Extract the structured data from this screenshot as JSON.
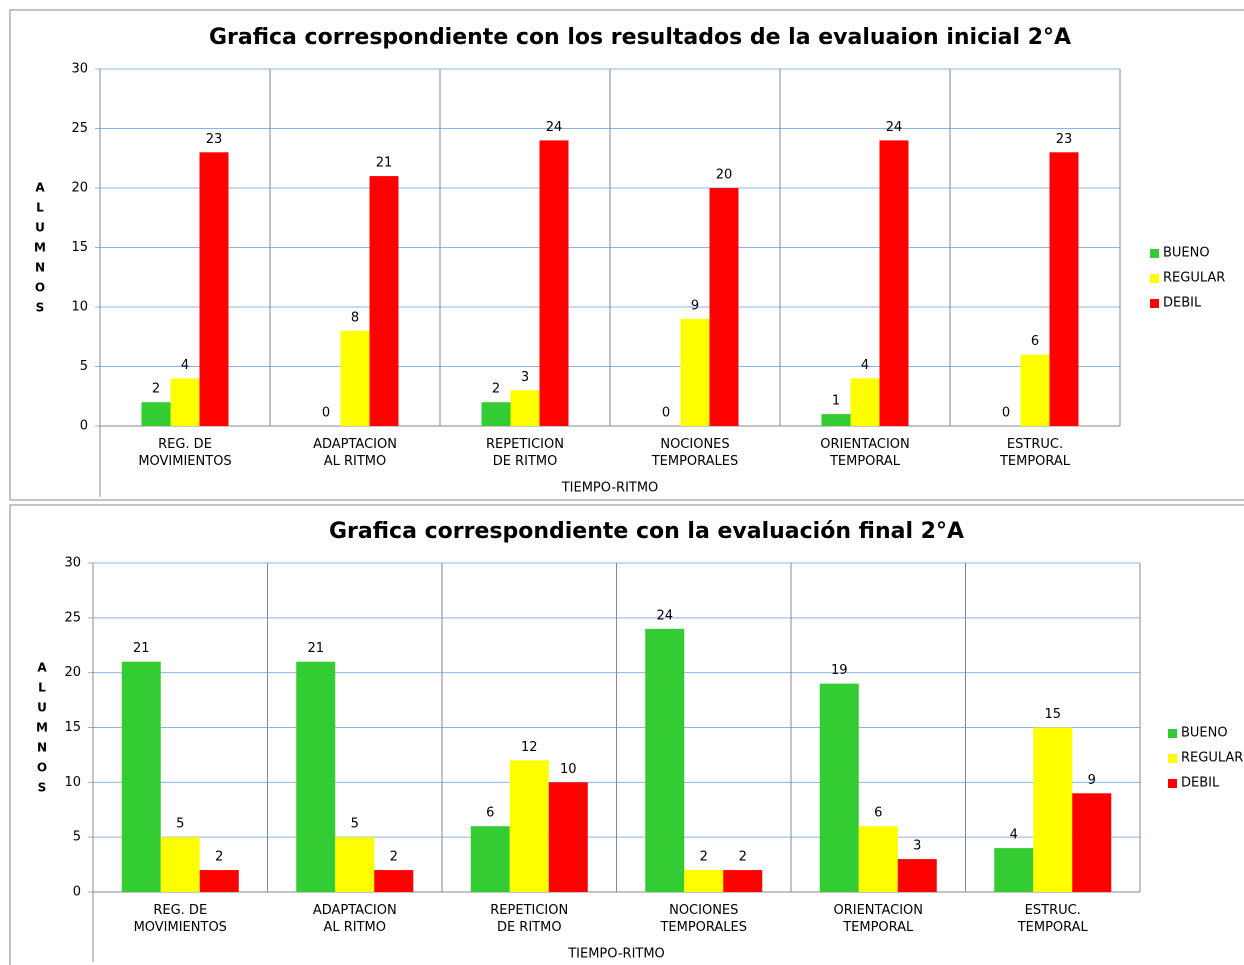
{
  "chart_data": [
    {
      "type": "bar",
      "title": "Grafica correspondiente con los resultados de la evaluaion inicial  2°A",
      "x_label": "TIEMPO-RITMO",
      "y_label": "ALUMNOS",
      "categories": [
        "REG. DE\nMOVIMIENTOS",
        "ADAPTACION\nAL RITMO",
        "REPETICION\nDE RITMO",
        "NOCIONES\nTEMPORALES",
        "ORIENTACION\nTEMPORAL",
        "ESTRUC.\nTEMPORAL"
      ],
      "series": [
        {
          "name": "BUENO",
          "color": "#33cc33",
          "values": [
            2,
            0,
            2,
            0,
            1,
            0
          ]
        },
        {
          "name": "REGULAR",
          "color": "#ffff00",
          "values": [
            4,
            8,
            3,
            9,
            4,
            6
          ]
        },
        {
          "name": "DEBIL",
          "color": "#ff0000",
          "values": [
            23,
            21,
            24,
            20,
            24,
            23
          ]
        }
      ],
      "ylim": [
        0,
        30
      ],
      "yticks": [
        0,
        5,
        10,
        15,
        20,
        25,
        30
      ],
      "grid": true,
      "legend": "right"
    },
    {
      "type": "bar",
      "title": "Grafica correspondiente con la evaluación final 2°A",
      "x_label": "TIEMPO-RITMO",
      "y_label": "ALUMNOS",
      "categories": [
        "REG. DE\nMOVIMIENTOS",
        "ADAPTACION\nAL RITMO",
        "REPETICION\nDE RITMO",
        "NOCIONES\nTEMPORALES",
        "ORIENTACION\nTEMPORAL",
        "ESTRUC.\nTEMPORAL"
      ],
      "series": [
        {
          "name": "BUENO",
          "color": "#33cc33",
          "values": [
            21,
            21,
            6,
            24,
            19,
            4
          ]
        },
        {
          "name": "REGULAR",
          "color": "#ffff00",
          "values": [
            5,
            5,
            12,
            2,
            6,
            15
          ]
        },
        {
          "name": "DEBIL",
          "color": "#ff0000",
          "values": [
            2,
            2,
            10,
            2,
            3,
            9
          ]
        }
      ],
      "ylim": [
        0,
        30
      ],
      "yticks": [
        0,
        5,
        10,
        15,
        20,
        25,
        30
      ],
      "grid": true,
      "legend": "right"
    }
  ]
}
